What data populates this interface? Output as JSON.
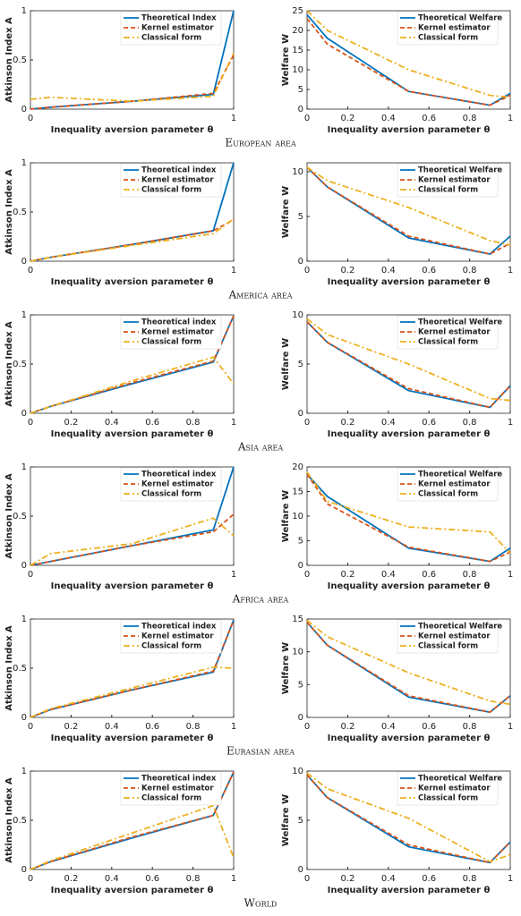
{
  "chart_data": [
    {
      "type": "line",
      "ylabel": "Atkinson Index A",
      "xlabel": "Inequality aversion parameter θ",
      "x": [
        0,
        0.1,
        0.5,
        0.9,
        1
      ],
      "xlim": [
        0,
        1
      ],
      "xticks": [
        0,
        1
      ],
      "ylim": [
        0,
        1
      ],
      "yticks": [
        0,
        0.5,
        1
      ],
      "legend": "upper right",
      "series": [
        {
          "name": "Theoretical Index",
          "color": "#0072bd",
          "dash": "solid",
          "values": [
            0,
            0.02,
            0.08,
            0.15,
            1
          ]
        },
        {
          "name": "Kernel estimator",
          "color": "#d95319",
          "dash": "dashed",
          "values": [
            0,
            0.02,
            0.08,
            0.16,
            0.55
          ]
        },
        {
          "name": "Classical form",
          "color": "#edb120",
          "dash": "dashdot",
          "values": [
            0.1,
            0.12,
            0.08,
            0.13,
            0.57
          ]
        }
      ]
    },
    {
      "type": "line",
      "ylabel": "Welfare W",
      "xlabel": "Inequality aversion parameter θ",
      "x": [
        0,
        0.1,
        0.5,
        0.9,
        1
      ],
      "xlim": [
        0,
        1
      ],
      "xticks": [
        0,
        0.2,
        0.4,
        0.6,
        0.8,
        1
      ],
      "ylim": [
        0,
        25
      ],
      "yticks": [
        0,
        5,
        10,
        15,
        20,
        25
      ],
      "legend": "upper right",
      "series": [
        {
          "name": "Theoretical Welfare",
          "color": "#0072bd",
          "dash": "solid",
          "values": [
            24,
            18,
            4.5,
            1,
            4
          ]
        },
        {
          "name": "Kernel estimator",
          "color": "#d95319",
          "dash": "dashed",
          "values": [
            23,
            16.5,
            4.5,
            1,
            3.5
          ]
        },
        {
          "name": "Classical form",
          "color": "#edb120",
          "dash": "dashdot",
          "values": [
            25,
            20,
            10,
            3.5,
            3
          ]
        }
      ]
    },
    {
      "type": "line",
      "ylabel": "Atkinson Index A",
      "xlabel": "Inequality aversion parameter θ",
      "x": [
        0,
        0.1,
        0.5,
        0.9,
        1
      ],
      "xlim": [
        0,
        1
      ],
      "xticks": [
        0,
        1
      ],
      "ylim": [
        0,
        1
      ],
      "yticks": [
        0,
        0.5,
        1
      ],
      "legend": "upper right",
      "series": [
        {
          "name": "Theoretical index",
          "color": "#0072bd",
          "dash": "solid",
          "values": [
            0,
            0.04,
            0.17,
            0.31,
            1
          ]
        },
        {
          "name": "Kernel estimator",
          "color": "#d95319",
          "dash": "dashed",
          "values": [
            0,
            0.04,
            0.17,
            0.31,
            0.42
          ]
        },
        {
          "name": "Classical form",
          "color": "#edb120",
          "dash": "dashdot",
          "values": [
            0,
            0.04,
            0.16,
            0.28,
            0.43
          ]
        }
      ]
    },
    {
      "type": "line",
      "ylabel": "Welfare W",
      "xlabel": "Inequality aversion parameter θ",
      "x": [
        0,
        0.1,
        0.5,
        0.9,
        1
      ],
      "xlim": [
        0,
        1
      ],
      "xticks": [
        0,
        0.2,
        0.4,
        0.6,
        0.8,
        1
      ],
      "ylim": [
        0,
        11
      ],
      "yticks": [
        0,
        5,
        10
      ],
      "legend": "upper right",
      "series": [
        {
          "name": "Theoretical Welfare",
          "color": "#0072bd",
          "dash": "solid",
          "values": [
            10.5,
            8.3,
            2.6,
            0.8,
            2.8
          ]
        },
        {
          "name": "Kernel estimator",
          "color": "#d95319",
          "dash": "dashed",
          "values": [
            10.5,
            8.3,
            2.8,
            0.8,
            2
          ]
        },
        {
          "name": "Classical form",
          "color": "#edb120",
          "dash": "dashdot",
          "values": [
            10.5,
            9,
            6,
            2.3,
            1.8
          ]
        }
      ]
    },
    {
      "type": "line",
      "ylabel": "Atkinson Index A",
      "xlabel": "Inequality aversion parameter θ",
      "x": [
        0,
        0.1,
        0.5,
        0.9,
        1
      ],
      "xlim": [
        0,
        1
      ],
      "xticks": [
        0,
        0.2,
        0.4,
        0.6,
        0.8,
        1
      ],
      "ylim": [
        0,
        1
      ],
      "yticks": [
        0,
        0.5,
        1
      ],
      "legend": "upper right",
      "series": [
        {
          "name": "Theoretical index",
          "color": "#0072bd",
          "dash": "solid",
          "values": [
            0,
            0.07,
            0.3,
            0.52,
            0.99
          ]
        },
        {
          "name": "Kernel estimator",
          "color": "#d95319",
          "dash": "dashed",
          "values": [
            0,
            0.07,
            0.31,
            0.53,
            0.99
          ]
        },
        {
          "name": "Classical form",
          "color": "#edb120",
          "dash": "dashdot",
          "values": [
            0,
            0.07,
            0.33,
            0.57,
            0.3
          ]
        }
      ]
    },
    {
      "type": "line",
      "ylabel": "Welfare W",
      "xlabel": "Inequality aversion parameter θ",
      "x": [
        0,
        0.1,
        0.5,
        0.9,
        1
      ],
      "xlim": [
        0,
        1
      ],
      "xticks": [
        0,
        0.2,
        0.4,
        0.6,
        0.8,
        1
      ],
      "ylim": [
        0,
        10
      ],
      "yticks": [
        0,
        5,
        10
      ],
      "legend": "upper right",
      "series": [
        {
          "name": "Theoretical Welfare",
          "color": "#0072bd",
          "dash": "solid",
          "values": [
            9.3,
            7.2,
            2.3,
            0.6,
            2.8
          ]
        },
        {
          "name": "Kernel estimator",
          "color": "#d95319",
          "dash": "dashed",
          "values": [
            9.3,
            7.2,
            2.5,
            0.6,
            2.8
          ]
        },
        {
          "name": "Classical form",
          "color": "#edb120",
          "dash": "dashdot",
          "values": [
            9.6,
            8,
            5,
            1.5,
            1.3
          ]
        }
      ]
    },
    {
      "type": "line",
      "ylabel": "Atkinson Index A",
      "xlabel": "Inequality aversion parameter θ",
      "x": [
        0,
        0.1,
        0.5,
        0.9,
        1
      ],
      "xlim": [
        0,
        1
      ],
      "xticks": [
        0,
        1
      ],
      "ylim": [
        0,
        1
      ],
      "yticks": [
        0,
        0.5,
        1
      ],
      "legend": "upper right",
      "series": [
        {
          "name": "Theoretical index",
          "color": "#0072bd",
          "dash": "solid",
          "values": [
            0,
            0.04,
            0.2,
            0.36,
            1
          ]
        },
        {
          "name": "Kernel estimator",
          "color": "#d95319",
          "dash": "dashed",
          "values": [
            0,
            0.04,
            0.2,
            0.34,
            0.52
          ]
        },
        {
          "name": "Classical form",
          "color": "#edb120",
          "dash": "dashdot",
          "values": [
            0,
            0.12,
            0.22,
            0.48,
            0.3
          ]
        }
      ]
    },
    {
      "type": "line",
      "ylabel": "Welfare W",
      "xlabel": "Inequality aversion parameter θ",
      "x": [
        0,
        0.1,
        0.5,
        0.9,
        1
      ],
      "xlim": [
        0,
        1
      ],
      "xticks": [
        0,
        0.2,
        0.4,
        0.6,
        0.8,
        1
      ],
      "ylim": [
        0,
        20
      ],
      "yticks": [
        0,
        5,
        10,
        15,
        20
      ],
      "legend": "upper right",
      "series": [
        {
          "name": "Theoretical Welfare",
          "color": "#0072bd",
          "dash": "solid",
          "values": [
            18.5,
            14,
            3.5,
            0.8,
            3.5
          ]
        },
        {
          "name": "Kernel estimator",
          "color": "#d95319",
          "dash": "dashed",
          "values": [
            18.5,
            12.5,
            3.7,
            0.8,
            2.7
          ]
        },
        {
          "name": "Classical form",
          "color": "#edb120",
          "dash": "dashdot",
          "values": [
            19,
            13,
            7.8,
            6.8,
            2.5
          ]
        }
      ]
    },
    {
      "type": "line",
      "ylabel": "Atkinson Index A",
      "xlabel": "Inequality aversion parameter θ",
      "x": [
        0,
        0.1,
        0.5,
        0.9,
        1
      ],
      "xlim": [
        0,
        1
      ],
      "xticks": [
        0,
        0.2,
        0.4,
        0.6,
        0.8,
        1
      ],
      "ylim": [
        0,
        1
      ],
      "yticks": [
        0,
        0.5,
        1
      ],
      "legend": "upper right",
      "series": [
        {
          "name": "Theoretical index",
          "color": "#0072bd",
          "dash": "solid",
          "values": [
            0,
            0.08,
            0.28,
            0.46,
            0.99
          ]
        },
        {
          "name": "Kernel estimator",
          "color": "#d95319",
          "dash": "dashed",
          "values": [
            0,
            0.08,
            0.28,
            0.47,
            0.99
          ]
        },
        {
          "name": "Classical form",
          "color": "#edb120",
          "dash": "dashdot",
          "values": [
            0,
            0.09,
            0.3,
            0.51,
            0.5
          ]
        }
      ]
    },
    {
      "type": "line",
      "ylabel": "Welfare W",
      "xlabel": "Inequality aversion parameter θ",
      "x": [
        0,
        0.1,
        0.5,
        0.9,
        1
      ],
      "xlim": [
        0,
        1
      ],
      "xticks": [
        0,
        0.2,
        0.4,
        0.6,
        0.8,
        1
      ],
      "ylim": [
        0,
        15
      ],
      "yticks": [
        0,
        5,
        10,
        15
      ],
      "legend": "upper right",
      "series": [
        {
          "name": "Theoretical Welfare",
          "color": "#0072bd",
          "dash": "solid",
          "values": [
            14.5,
            11,
            3.1,
            0.8,
            3.3
          ]
        },
        {
          "name": "Kernel estimator",
          "color": "#d95319",
          "dash": "dashed",
          "values": [
            14.5,
            11,
            3.3,
            0.8,
            3.3
          ]
        },
        {
          "name": "Classical form",
          "color": "#edb120",
          "dash": "dashdot",
          "values": [
            14.8,
            12.3,
            6.8,
            2.5,
            2
          ]
        }
      ]
    },
    {
      "type": "line",
      "ylabel": "Atkinson Index A",
      "xlabel": "Inequality aversion parameter θ",
      "x": [
        0,
        0.1,
        0.5,
        0.9,
        1
      ],
      "xlim": [
        0,
        1
      ],
      "xticks": [
        0,
        0.2,
        0.4,
        0.6,
        0.8,
        1
      ],
      "ylim": [
        0,
        1
      ],
      "yticks": [
        0,
        0.5,
        1
      ],
      "legend": "upper right",
      "series": [
        {
          "name": "Theoretical index",
          "color": "#0072bd",
          "dash": "solid",
          "values": [
            0,
            0.08,
            0.32,
            0.55,
            0.99
          ]
        },
        {
          "name": "Kernel estimator",
          "color": "#d95319",
          "dash": "dashed",
          "values": [
            0,
            0.08,
            0.33,
            0.55,
            0.99
          ]
        },
        {
          "name": "Classical form",
          "color": "#edb120",
          "dash": "dashdot",
          "values": [
            0,
            0.09,
            0.37,
            0.65,
            0.12
          ]
        }
      ]
    },
    {
      "type": "line",
      "ylabel": "Welfare W",
      "xlabel": "Inequality aversion parameter θ",
      "x": [
        0,
        0.1,
        0.5,
        0.9,
        1
      ],
      "xlim": [
        0,
        1
      ],
      "xticks": [
        0,
        0.2,
        0.4,
        0.6,
        0.8,
        1
      ],
      "ylim": [
        0,
        10
      ],
      "yticks": [
        0,
        5,
        10
      ],
      "legend": "upper right",
      "series": [
        {
          "name": "Theoretical Welfare",
          "color": "#0072bd",
          "dash": "solid",
          "values": [
            9.6,
            7.3,
            2.3,
            0.7,
            2.8
          ]
        },
        {
          "name": "Kernel estimator",
          "color": "#d95319",
          "dash": "dashed",
          "values": [
            9.6,
            7.3,
            2.5,
            0.7,
            2.8
          ]
        },
        {
          "name": "Classical form",
          "color": "#edb120",
          "dash": "dashdot",
          "values": [
            9.8,
            8.2,
            5.2,
            0.8,
            1.5
          ]
        }
      ]
    }
  ],
  "captions": [
    "European area",
    "America area",
    "Asia area",
    "Africa area",
    "Eurasian area",
    "World"
  ]
}
